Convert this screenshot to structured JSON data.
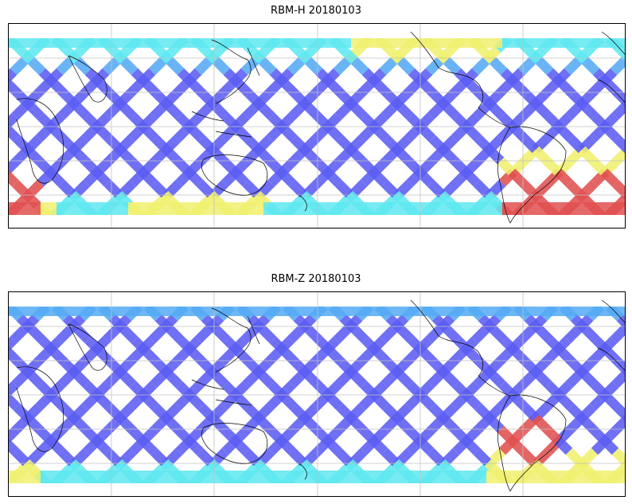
{
  "figure": {
    "panels": [
      {
        "title": "RBM-H 20180103"
      },
      {
        "title": "RBM-Z 20180103"
      }
    ]
  },
  "colors": {
    "low": "#5b5cf2",
    "mid_low": "#55aaf5",
    "mid": "#5ee8f0",
    "mid_high": "#f0f070",
    "high": "#e05050",
    "coast": "#000000",
    "grid": "#c0c0c0"
  },
  "icons": [
    "coastline-outline",
    "gridlines"
  ]
}
